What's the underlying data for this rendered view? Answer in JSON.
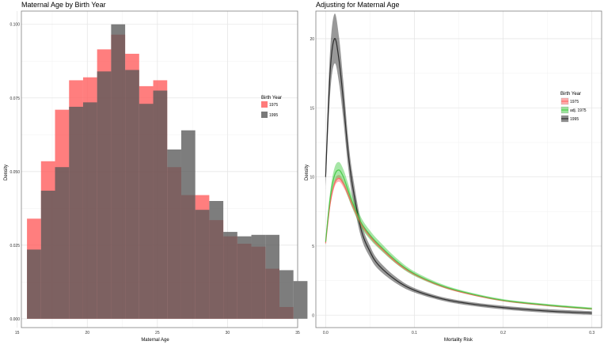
{
  "chart_data": [
    {
      "type": "bar",
      "title": "Maternal Age by Birth Year",
      "xlabel": "Maternal Age",
      "ylabel": "Density",
      "xlim": [
        15.3,
        35.0
      ],
      "ylim": [
        -0.003,
        0.1045
      ],
      "xticks": [
        15,
        20,
        25,
        30,
        35
      ],
      "xtick_labels": [
        "15",
        "20",
        "25",
        "30",
        "35"
      ],
      "yticks": [
        0,
        0.025,
        0.05,
        0.075,
        0.1
      ],
      "ytick_labels": [
        "0.000",
        "0.025",
        "0.050",
        "0.075",
        "0.100"
      ],
      "bin_start": 15.7,
      "bin_width": 1.0,
      "legend": {
        "title": "Birth Year",
        "position": "right"
      },
      "series": [
        {
          "name": "1975",
          "color": "#ff5a5a",
          "values": [
            0.034,
            0.0535,
            0.071,
            0.081,
            0.082,
            0.0915,
            0.0965,
            0.09,
            0.079,
            0.081,
            0.0515,
            0.042,
            0.042,
            0.0335,
            0.028,
            0.0255,
            0.0245,
            0.017,
            0.004
          ]
        },
        {
          "name": "1995",
          "color": "#595959",
          "values": [
            0.0235,
            0.0435,
            0.0515,
            0.072,
            0.0735,
            0.084,
            0.1,
            0.0845,
            0.073,
            0.0775,
            0.0575,
            0.064,
            0.037,
            0.04,
            0.0295,
            0.028,
            0.0285,
            0.0285,
            0.0165,
            0.0128
          ]
        }
      ]
    },
    {
      "type": "line",
      "title": "Adjusting for Maternal Age",
      "xlabel": "Mortality Risk",
      "ylabel": "Density",
      "xlim": [
        -0.011,
        0.311
      ],
      "ylim": [
        -0.9,
        22.0
      ],
      "xticks": [
        0.0,
        0.1,
        0.2,
        0.3
      ],
      "xtick_labels": [
        "0.0",
        "0.1",
        "0.2",
        "0.3"
      ],
      "yticks": [
        0,
        5,
        10,
        15,
        20
      ],
      "ytick_labels": [
        "0",
        "5",
        "10",
        "15",
        "20"
      ],
      "legend": {
        "title": "Birth Year",
        "position": "right"
      },
      "x": [
        0.0,
        0.005,
        0.01,
        0.015,
        0.02,
        0.025,
        0.03,
        0.04,
        0.05,
        0.06,
        0.08,
        0.1,
        0.13,
        0.16,
        0.2,
        0.25,
        0.3
      ],
      "series": [
        {
          "name": "1975",
          "color": "#ff5a5a",
          "band": 0.25,
          "values": [
            5.2,
            8.0,
            9.5,
            9.9,
            9.5,
            8.8,
            8.0,
            6.6,
            5.7,
            5.0,
            3.8,
            2.95,
            2.1,
            1.55,
            1.05,
            0.7,
            0.45
          ]
        },
        {
          "name": "adj. 1975",
          "color": "#3cc83c",
          "band": 0.55,
          "values": [
            5.3,
            8.4,
            10.1,
            10.5,
            10.0,
            9.1,
            8.2,
            6.7,
            5.8,
            5.1,
            3.9,
            3.0,
            2.15,
            1.6,
            1.08,
            0.73,
            0.47
          ]
        },
        {
          "name": "1995",
          "color": "#1a1a1a",
          "band": 0.9,
          "values": [
            10.0,
            17.5,
            20.0,
            18.5,
            15.5,
            12.0,
            9.5,
            6.2,
            4.6,
            3.6,
            2.5,
            1.8,
            1.2,
            0.85,
            0.55,
            0.3,
            0.15
          ]
        }
      ]
    }
  ]
}
